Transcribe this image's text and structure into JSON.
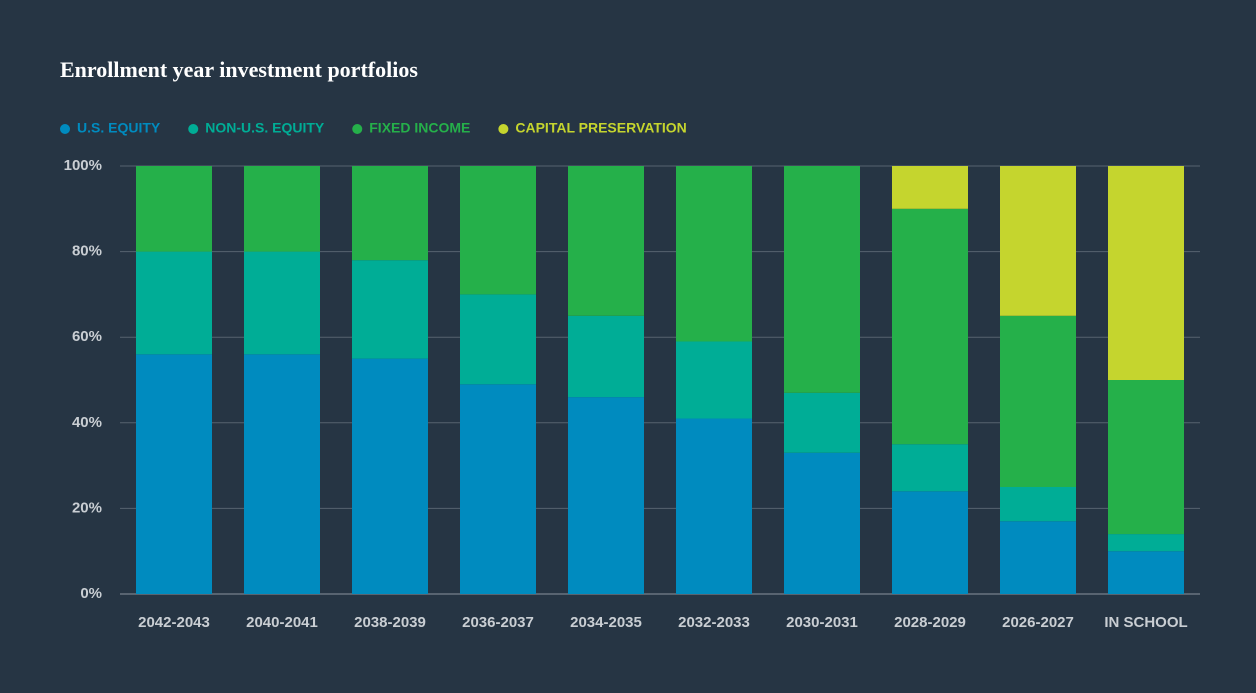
{
  "chart_data": {
    "type": "stacked_bar",
    "title": "Enrollment year investment portfolios",
    "categories": [
      "2042-2043",
      "2040-2041",
      "2038-2039",
      "2036-2037",
      "2034-2035",
      "2032-2033",
      "2030-2031",
      "2028-2029",
      "2026-2027",
      "IN SCHOOL"
    ],
    "series": [
      {
        "name": "U.S. EQUITY",
        "color": "#008bbf",
        "values": [
          56,
          56,
          55,
          49,
          46,
          41,
          33,
          24,
          17,
          10
        ]
      },
      {
        "name": "NON-U.S. EQUITY",
        "color": "#00ad96",
        "values": [
          24,
          24,
          23,
          21,
          19,
          18,
          14,
          11,
          8,
          4
        ]
      },
      {
        "name": "FIXED INCOME",
        "color": "#25b04a",
        "values": [
          20,
          20,
          22,
          30,
          35,
          41,
          53,
          55,
          40,
          36
        ]
      },
      {
        "name": "CAPITAL PRESERVATION",
        "color": "#c5d52e",
        "values": [
          0,
          0,
          0,
          0,
          0,
          0,
          0,
          10,
          35,
          50
        ]
      }
    ],
    "ylim": [
      0,
      100
    ],
    "yticks": [
      {
        "value": 0,
        "label": "0%"
      },
      {
        "value": 20,
        "label": "20%"
      },
      {
        "value": 40,
        "label": "40%"
      },
      {
        "value": 60,
        "label": "60%"
      },
      {
        "value": 80,
        "label": "80%"
      },
      {
        "value": 100,
        "label": "100%"
      }
    ],
    "grid": true
  }
}
